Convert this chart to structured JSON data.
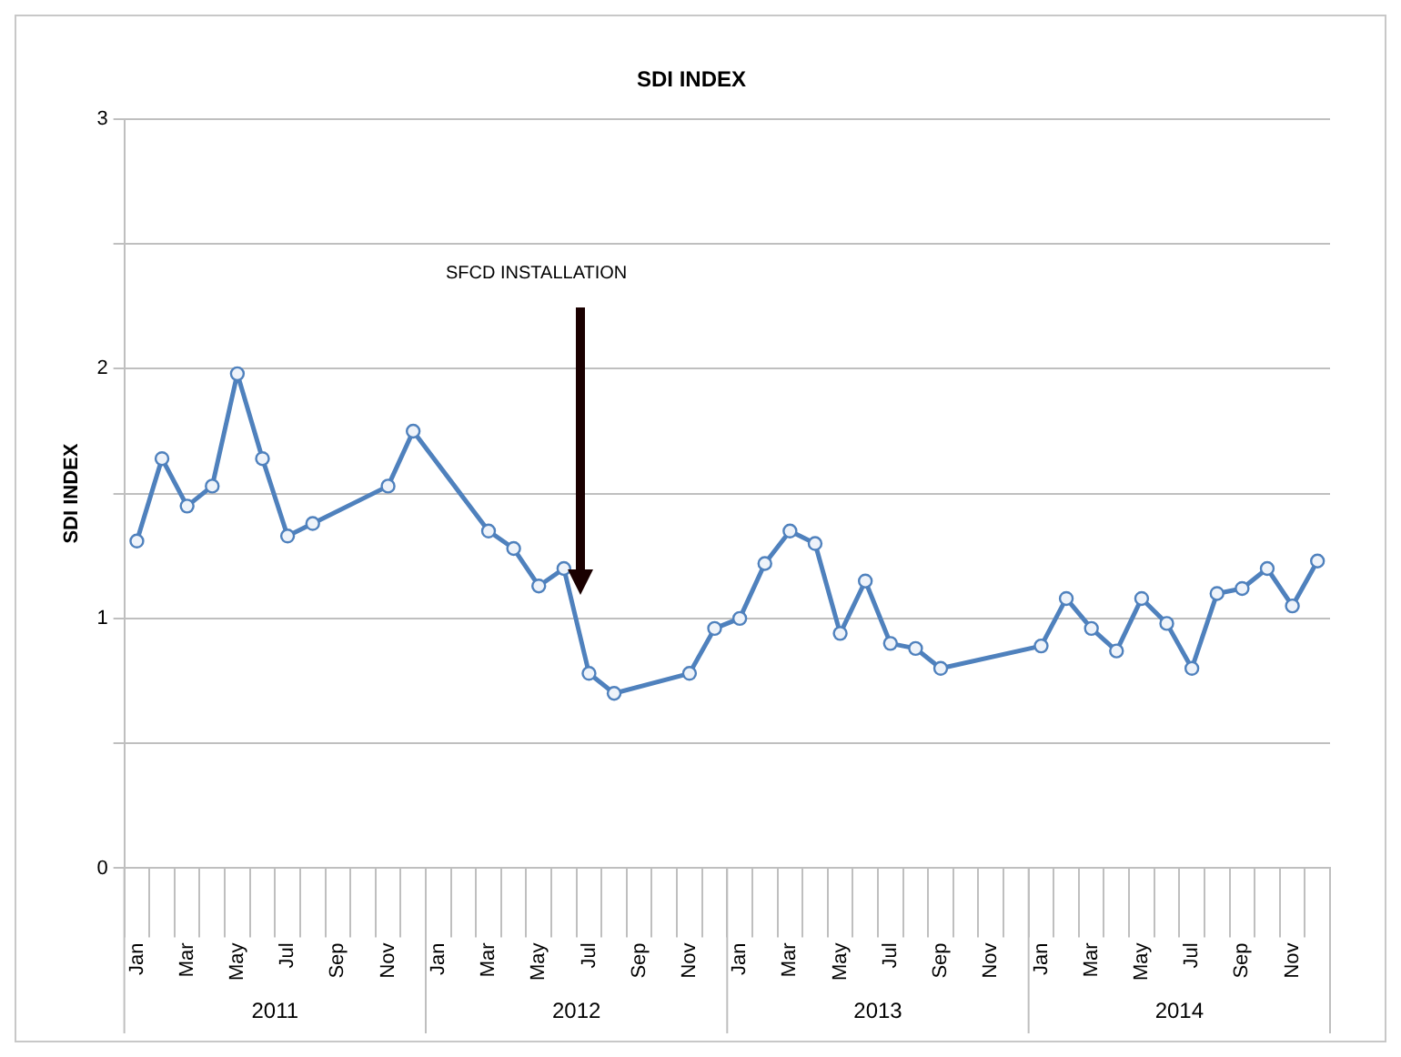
{
  "chart_data": {
    "type": "line",
    "title": "SDI INDEX",
    "ylabel": "SDI INDEX",
    "categories": [
      "Jan",
      null,
      "Mar",
      null,
      "May",
      null,
      "Jul",
      null,
      "Sep",
      null,
      "Nov",
      null,
      "Jan",
      null,
      "Mar",
      null,
      "May",
      null,
      "Jul",
      null,
      "Sep",
      null,
      "Nov",
      null,
      "Jan",
      null,
      "Mar",
      null,
      "May",
      null,
      "Jul",
      null,
      "Sep",
      null,
      "Nov",
      null,
      "Jan",
      null,
      "Mar",
      null,
      "May",
      null,
      "Jul",
      null,
      "Sep",
      null,
      "Nov",
      null
    ],
    "series": [
      {
        "color": "#4f81bd",
        "values": [
          1.31,
          1.64,
          1.45,
          1.53,
          1.98,
          1.64,
          1.33,
          1.38,
          null,
          null,
          1.53,
          1.75,
          null,
          null,
          1.35,
          1.28,
          1.13,
          1.2,
          0.78,
          0.7,
          null,
          null,
          0.78,
          0.96,
          1.0,
          1.22,
          1.35,
          1.3,
          0.94,
          1.15,
          0.9,
          0.88,
          0.8,
          null,
          null,
          null,
          0.89,
          1.08,
          0.96,
          0.87,
          1.08,
          0.98,
          0.8,
          1.1,
          1.12,
          1.2,
          1.05,
          1.23
        ]
      }
    ],
    "ylim": [
      0,
      3
    ],
    "yticks": [
      0,
      {
        "value": 0.5,
        "label": null
      },
      1,
      {
        "value": 1.5,
        "label": null
      },
      2,
      {
        "value": 2.5,
        "label": null
      },
      3
    ],
    "grid": "y",
    "legend": false,
    "marker": "circle",
    "line_style": "solid",
    "annotations": [
      "SFCD INSTALLATION",
      "2011",
      "2012",
      "2013",
      "2014"
    ]
  }
}
